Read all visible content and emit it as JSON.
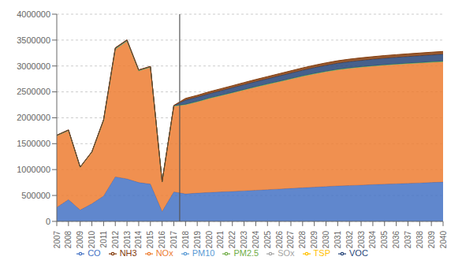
{
  "chart_data": {
    "type": "area",
    "stacked": true,
    "x": [
      2007,
      2008,
      2009,
      2010,
      2011,
      2012,
      2013,
      2014,
      2015,
      2016,
      2017,
      2018,
      2019,
      2020,
      2021,
      2022,
      2023,
      2024,
      2025,
      2026,
      2027,
      2028,
      2029,
      2030,
      2031,
      2032,
      2033,
      2034,
      2035,
      2036,
      2037,
      2038,
      2039,
      2040
    ],
    "series": [
      {
        "name": "CO",
        "color": "#4472C4",
        "values": [
          270000,
          420000,
          220000,
          340000,
          490000,
          860000,
          820000,
          750000,
          720000,
          190000,
          570000,
          530000,
          545000,
          558000,
          568000,
          578000,
          590000,
          600000,
          612000,
          624000,
          636000,
          648000,
          660000,
          672000,
          684000,
          692000,
          700000,
          710000,
          718000,
          726000,
          734000,
          742000,
          750000,
          758000
        ]
      },
      {
        "name": "NOx",
        "color": "#ED7D31",
        "values": [
          1380000,
          1330000,
          820000,
          990000,
          1450000,
          2450000,
          2650000,
          2150000,
          2250000,
          570000,
          1650000,
          1720000,
          1760000,
          1810000,
          1855000,
          1900000,
          1945000,
          1990000,
          2030000,
          2070000,
          2110000,
          2150000,
          2185000,
          2215000,
          2240000,
          2260000,
          2275000,
          2285000,
          2295000,
          2302000,
          2308000,
          2313000,
          2318000,
          2322000
        ]
      },
      {
        "name": "SOx",
        "color": "#A5A5A5",
        "values": [
          4000,
          4500,
          2500,
          4000,
          7000,
          13000,
          11000,
          7500,
          6500,
          1800,
          5500,
          4500,
          4500,
          4500,
          4500,
          4500,
          4500,
          4500,
          4500,
          4500,
          4500,
          4500,
          4500,
          4500,
          4500,
          4500,
          4500,
          4500,
          4500,
          4500,
          4500,
          4500,
          4500,
          4500
        ]
      },
      {
        "name": "TSP",
        "color": "#FFC000",
        "values": [
          1500,
          1800,
          1200,
          1800,
          2800,
          4500,
          3800,
          2800,
          2800,
          900,
          2200,
          2000,
          2000,
          2000,
          2000,
          2000,
          2000,
          2000,
          2000,
          2000,
          2000,
          2000,
          2000,
          2000,
          2000,
          2000,
          2000,
          2000,
          2000,
          2000,
          2000,
          2000,
          2000,
          2000
        ]
      },
      {
        "name": "PM10",
        "color": "#5B9BD5",
        "values": [
          1800,
          2000,
          1400,
          1900,
          2900,
          4800,
          4000,
          2900,
          2900,
          950,
          2300,
          2200,
          2200,
          2200,
          2200,
          2200,
          2200,
          2200,
          2200,
          2200,
          2200,
          2200,
          2200,
          2200,
          2200,
          2200,
          2200,
          2200,
          2200,
          2200,
          2200,
          2200,
          2200,
          2200
        ]
      },
      {
        "name": "PM2.5",
        "color": "#70AD47",
        "values": [
          900,
          950,
          700,
          900,
          1400,
          2300,
          1900,
          1400,
          1400,
          450,
          1100,
          1100,
          1100,
          1100,
          1100,
          1100,
          1100,
          1100,
          1100,
          1100,
          1100,
          1100,
          1100,
          1100,
          1100,
          1100,
          1100,
          1100,
          1100,
          1100,
          1100,
          1100,
          1100,
          1100
        ]
      },
      {
        "name": "VOC",
        "color": "#264478",
        "values": [
          4500,
          5500,
          2800,
          4500,
          7500,
          12500,
          10500,
          7500,
          6500,
          1800,
          5500,
          80000,
          83000,
          86000,
          89000,
          92000,
          95000,
          98000,
          101000,
          104000,
          107000,
          110000,
          113000,
          116000,
          119000,
          121000,
          123000,
          125000,
          127000,
          129000,
          131000,
          133000,
          135000,
          137000
        ]
      },
      {
        "name": "NH3",
        "color": "#843C0C",
        "values": [
          1800,
          1900,
          1300,
          1800,
          2800,
          4800,
          3800,
          2800,
          2800,
          900,
          2300,
          35000,
          36000,
          37500,
          38500,
          39500,
          40500,
          41500,
          42500,
          43500,
          44500,
          45500,
          46500,
          47500,
          48500,
          49200,
          49800,
          50400,
          51000,
          51500,
          52000,
          52500,
          53000,
          53500
        ]
      }
    ],
    "vline": 2017.5,
    "xlim": [
      2007,
      2040
    ],
    "xticks": [
      2007,
      2008,
      2009,
      2010,
      2011,
      2012,
      2013,
      2014,
      2015,
      2016,
      2017,
      2018,
      2019,
      2020,
      2021,
      2022,
      2023,
      2024,
      2025,
      2026,
      2027,
      2028,
      2029,
      2030,
      2031,
      2032,
      2033,
      2034,
      2035,
      2036,
      2037,
      2038,
      2039,
      2040
    ],
    "ylim": [
      0,
      4000000
    ],
    "yticks": [
      0,
      500000,
      1000000,
      1500000,
      2000000,
      2500000,
      3000000,
      3500000,
      4000000
    ],
    "grid": "y",
    "legend": "bottom"
  }
}
